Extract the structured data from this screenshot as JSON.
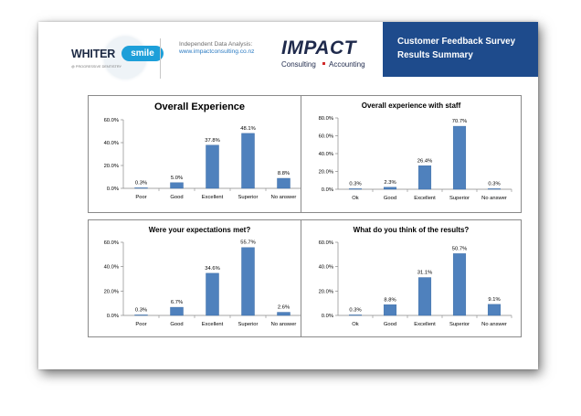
{
  "header": {
    "brand_left_name": "WHITER",
    "brand_left_badge": "smile",
    "brand_left_sub": "@ PROGRESSIVE DENTISTRY",
    "analysis_label": "Independent Data Analysis:",
    "analysis_url": "www.impactconsulting.co.nz",
    "impact_name": "IMPACT",
    "impact_sub_left": "Consulting",
    "impact_sub_right": "Accounting",
    "title_line1": "Customer Feedback Survey",
    "title_line2": "Results Summary"
  },
  "colors": {
    "bar": "#4f81bd",
    "bar_edge": "#3a6aa3",
    "accent": "#1e4b8c"
  },
  "chart_data": [
    {
      "type": "bar",
      "title": "Overall Experience",
      "categories": [
        "Poor",
        "Good",
        "Excellent",
        "Superior",
        "No answer"
      ],
      "values": [
        0.3,
        5.0,
        37.8,
        48.1,
        8.8
      ],
      "labels": [
        "0.3%",
        "5.0%",
        "37.8%",
        "48.1%",
        "8.8%"
      ],
      "yticks": [
        "0.0%",
        "20.0%",
        "40.0%",
        "60.0%"
      ],
      "ylim": [
        0,
        60
      ],
      "xlabel": "",
      "ylabel": ""
    },
    {
      "type": "bar",
      "title": "Overall experience with staff",
      "categories": [
        "Ok",
        "Good",
        "Excellent",
        "Superior",
        "No answer"
      ],
      "values": [
        0.3,
        2.3,
        26.4,
        70.7,
        0.3
      ],
      "labels": [
        "0.3%",
        "2.3%",
        "26.4%",
        "70.7%",
        "0.3%"
      ],
      "yticks": [
        "0.0%",
        "20.0%",
        "40.0%",
        "60.0%",
        "80.0%"
      ],
      "ylim": [
        0,
        80
      ],
      "xlabel": "",
      "ylabel": ""
    },
    {
      "type": "bar",
      "title": "Were your expectations met?",
      "categories": [
        "Poor",
        "Good",
        "Excellent",
        "Superior",
        "No answer"
      ],
      "values": [
        0.3,
        6.7,
        34.6,
        55.7,
        2.6
      ],
      "labels": [
        "0.3%",
        "6.7%",
        "34.6%",
        "55.7%",
        "2.6%"
      ],
      "yticks": [
        "0.0%",
        "20.0%",
        "40.0%",
        "60.0%"
      ],
      "ylim": [
        0,
        60
      ],
      "xlabel": "",
      "ylabel": ""
    },
    {
      "type": "bar",
      "title": "What do you think of the results?",
      "categories": [
        "Ok",
        "Good",
        "Excellent",
        "Superior",
        "No answer"
      ],
      "values": [
        0.3,
        8.8,
        31.1,
        50.7,
        9.1
      ],
      "labels": [
        "0.3%",
        "8.8%",
        "31.1%",
        "50.7%",
        "9.1%"
      ],
      "yticks": [
        "0.0%",
        "20.0%",
        "40.0%",
        "60.0%"
      ],
      "ylim": [
        0,
        60
      ],
      "xlabel": "",
      "ylabel": ""
    }
  ]
}
